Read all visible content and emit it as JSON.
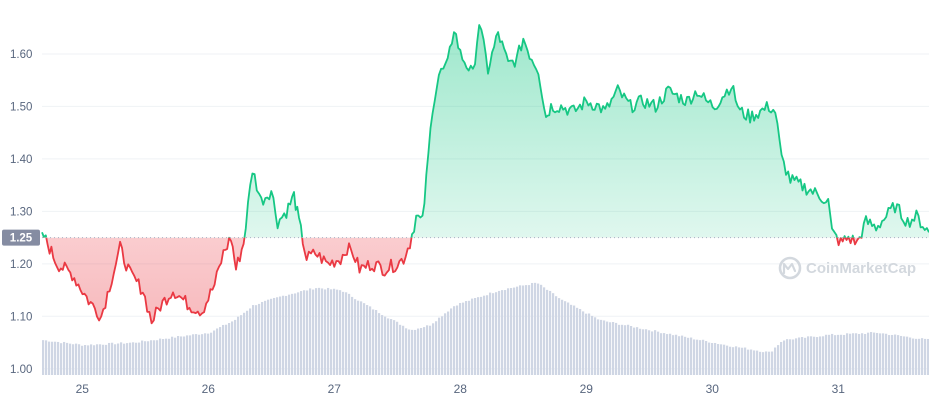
{
  "chart_data": {
    "type": "area",
    "title": "",
    "xlabel": "",
    "ylabel": "",
    "ylim": [
      0.99,
      1.68
    ],
    "xlim": [
      24.68,
      31.72
    ],
    "y_ticks": [
      "1.00",
      "1.10",
      "1.20",
      "1.30",
      "1.40",
      "1.50",
      "1.60"
    ],
    "x_ticks": [
      "25",
      "26",
      "27",
      "28",
      "29",
      "30",
      "31"
    ],
    "reference": {
      "value": 1.25,
      "label": "1.25"
    },
    "grid": "horizontal",
    "watermark": "CoinMarketCap",
    "colors": {
      "above": "#16c784",
      "below": "#ea3943",
      "volume": "#cfd6e4",
      "grid": "#eff2f5",
      "ref_label_bg": "#858ca2"
    },
    "series": [
      {
        "x": [
          24.68,
          24.8,
          24.92,
          25.05,
          25.15,
          25.3,
          25.38,
          25.48,
          25.55,
          25.62,
          25.72,
          25.85,
          25.95,
          26.05,
          26.12,
          26.18,
          26.22,
          26.28,
          26.35,
          26.42,
          26.5,
          26.55,
          26.62,
          26.68,
          26.72,
          26.78,
          26.85,
          26.95,
          27.05,
          27.1,
          27.15,
          27.2,
          27.3,
          27.4,
          27.5,
          27.55,
          27.6,
          27.65,
          27.7,
          27.73,
          27.78,
          27.83,
          27.9,
          27.95,
          28.0,
          28.1,
          28.15,
          28.22,
          28.3,
          28.38,
          28.45,
          28.5,
          28.55,
          28.62,
          28.68,
          28.72,
          28.8,
          28.9,
          29.0,
          29.1,
          29.15,
          29.25,
          29.35,
          29.45,
          29.55,
          29.65,
          29.72,
          29.8,
          29.88,
          29.95,
          30.02,
          30.08,
          30.15,
          30.22,
          30.3,
          30.38,
          30.45,
          30.5,
          30.55,
          30.62,
          30.7,
          30.78,
          30.85,
          30.92,
          30.95,
          31.02,
          31.08,
          31.15,
          31.22,
          31.3,
          31.38,
          31.45,
          31.55,
          31.62,
          31.72
        ],
        "values": [
          1.26,
          1.2,
          1.18,
          1.13,
          1.1,
          1.23,
          1.18,
          1.15,
          1.09,
          1.12,
          1.15,
          1.12,
          1.11,
          1.16,
          1.22,
          1.25,
          1.19,
          1.24,
          1.38,
          1.32,
          1.34,
          1.28,
          1.3,
          1.33,
          1.28,
          1.21,
          1.22,
          1.2,
          1.21,
          1.23,
          1.22,
          1.19,
          1.2,
          1.19,
          1.2,
          1.21,
          1.24,
          1.29,
          1.28,
          1.36,
          1.5,
          1.56,
          1.58,
          1.65,
          1.6,
          1.56,
          1.66,
          1.57,
          1.64,
          1.58,
          1.59,
          1.63,
          1.6,
          1.57,
          1.48,
          1.5,
          1.5,
          1.49,
          1.51,
          1.5,
          1.49,
          1.53,
          1.5,
          1.51,
          1.5,
          1.53,
          1.52,
          1.51,
          1.53,
          1.51,
          1.5,
          1.52,
          1.54,
          1.49,
          1.48,
          1.49,
          1.5,
          1.49,
          1.4,
          1.36,
          1.35,
          1.34,
          1.33,
          1.32,
          1.26,
          1.24,
          1.25,
          1.24,
          1.28,
          1.27,
          1.29,
          1.31,
          1.28,
          1.29,
          1.26
        ]
      },
      {
        "name": "",
        "type": "bar",
        "x": [
          24.68,
          25.0,
          25.4,
          26.0,
          26.2,
          26.35,
          26.6,
          26.85,
          27.05,
          27.35,
          27.6,
          27.75,
          27.95,
          28.3,
          28.6,
          28.8,
          29.1,
          29.5,
          29.8,
          30.1,
          30.45,
          30.55,
          30.9,
          31.3,
          31.72
        ],
        "values": [
          0.07,
          0.06,
          0.065,
          0.085,
          0.11,
          0.14,
          0.16,
          0.175,
          0.17,
          0.125,
          0.09,
          0.1,
          0.14,
          0.17,
          0.185,
          0.15,
          0.11,
          0.09,
          0.075,
          0.06,
          0.045,
          0.07,
          0.08,
          0.085,
          0.07
        ]
      }
    ]
  }
}
